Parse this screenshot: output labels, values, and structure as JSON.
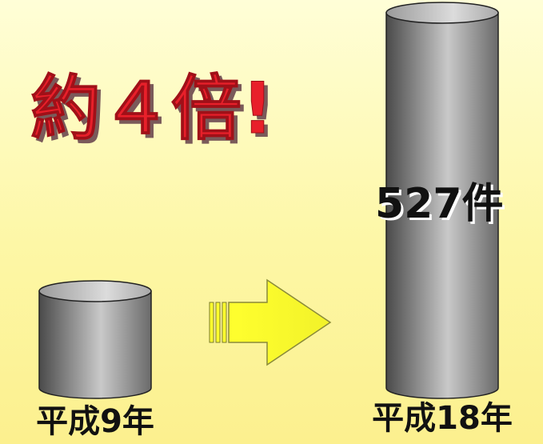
{
  "headline": "約４倍!",
  "chart_data": {
    "type": "bar",
    "categories": [
      "平成9年",
      "平成18年"
    ],
    "series": [
      {
        "values": [
          136,
          527
        ]
      }
    ],
    "data_labels": [
      "",
      "527件"
    ],
    "ylim": [
      0,
      540
    ],
    "grid": false,
    "legend": "none",
    "bar_style": "cylinder",
    "colors": {
      "bar_dark": "#4a4a4a",
      "bar_light": "#c9c9c9",
      "bar_top": "#d4d4d4",
      "arrow_fill": "#ffff2e",
      "arrow_stroke": "#8a8a3a",
      "headline_fill": "#e8202a",
      "headline_shadow": "#7a5a5a",
      "background": "#fdf7a6"
    }
  }
}
